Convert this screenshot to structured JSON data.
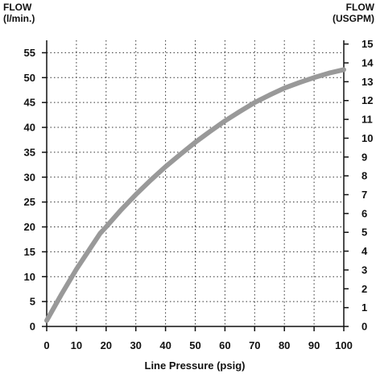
{
  "chart_data": {
    "type": "line",
    "title": "",
    "xlabel": "Line Pressure (psig)",
    "ylabel_left_line1": "FLOW",
    "ylabel_left_line2": "(l/min.)",
    "ylabel_right_line1": "FLOW",
    "ylabel_right_line2": "(USGPM)",
    "xlim": [
      0,
      100
    ],
    "ylim_left": [
      0,
      57.5
    ],
    "ylim_right": [
      0,
      15.2
    ],
    "x_ticks": [
      0,
      10,
      20,
      30,
      40,
      50,
      60,
      70,
      80,
      90,
      100
    ],
    "y_ticks_left": [
      0,
      5,
      10,
      15,
      20,
      25,
      30,
      35,
      40,
      45,
      50,
      55
    ],
    "y_ticks_right": [
      0,
      1,
      2,
      3,
      4,
      5,
      6,
      7,
      8,
      9,
      10,
      11,
      12,
      13,
      14,
      15
    ],
    "grid": true,
    "grid_style": "dotted",
    "series": [
      {
        "color": "#999999",
        "x": [
          0,
          5,
          10,
          15,
          18,
          20,
          25,
          30,
          35,
          40,
          45,
          50,
          55,
          60,
          65,
          70,
          75,
          80,
          85,
          90,
          95,
          100
        ],
        "y": [
          1.2,
          6.5,
          11.5,
          16.0,
          18.7,
          20.0,
          23.4,
          26.5,
          29.4,
          32.1,
          34.6,
          37.0,
          39.2,
          41.3,
          43.2,
          45.0,
          46.5,
          47.9,
          49.0,
          50.0,
          50.9,
          51.6
        ]
      }
    ]
  }
}
